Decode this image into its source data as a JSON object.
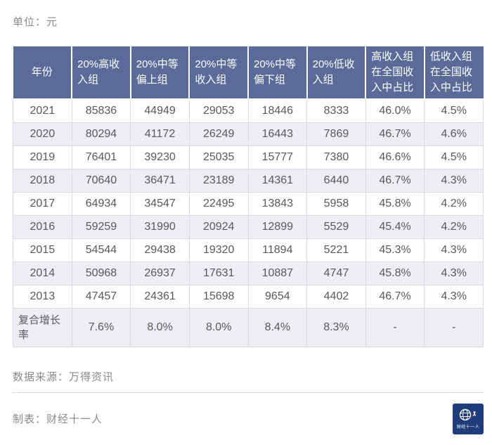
{
  "page": {
    "unit_label": "单位：元"
  },
  "chart_data": {
    "type": "table",
    "unit": "单位：元",
    "columns": [
      "年份",
      "20%高收入组",
      "20%中等偏上组",
      "20%中等收入组",
      "20%中等偏下组",
      "20%低收入组",
      "高收入组在全国收入中占比",
      "低收入组在全国收入中占比"
    ],
    "rows": [
      [
        "2021",
        "85836",
        "44949",
        "29053",
        "18446",
        "8333",
        "46.0%",
        "4.5%"
      ],
      [
        "2020",
        "80294",
        "41172",
        "26249",
        "16443",
        "7869",
        "46.7%",
        "4.6%"
      ],
      [
        "2019",
        "76401",
        "39230",
        "25035",
        "15777",
        "7380",
        "46.6%",
        "4.5%"
      ],
      [
        "2018",
        "70640",
        "36471",
        "23189",
        "14361",
        "6440",
        "46.7%",
        "4.3%"
      ],
      [
        "2017",
        "64934",
        "34547",
        "22495",
        "13843",
        "5958",
        "45.8%",
        "4.2%"
      ],
      [
        "2016",
        "59259",
        "31990",
        "20924",
        "12899",
        "5529",
        "45.4%",
        "4.2%"
      ],
      [
        "2015",
        "54544",
        "29438",
        "19320",
        "11894",
        "5221",
        "45.3%",
        "4.3%"
      ],
      [
        "2014",
        "50968",
        "26937",
        "17631",
        "10887",
        "4747",
        "45.8%",
        "4.3%"
      ],
      [
        "2013",
        "47457",
        "24361",
        "15698",
        "9654",
        "4402",
        "46.7%",
        "4.3%"
      ],
      [
        "复合增长率",
        "7.6%",
        "8.0%",
        "8.0%",
        "8.4%",
        "8.3%",
        "-",
        "-"
      ]
    ],
    "growth_row_label": "复合增长率"
  },
  "footer": {
    "source_label": "数据来源：万得资讯",
    "credit_label": "制表：财经十一人",
    "logo_text": "财经十一人"
  },
  "colors": {
    "header_bg": "#5a6b99",
    "row_stripe": "#edeff4",
    "body_text": "#595959",
    "muted_text": "#8a8a8a",
    "border": "#d9dbe0",
    "logo_bg": "#1f3d7a",
    "logo_dash": "#d23a3a"
  }
}
